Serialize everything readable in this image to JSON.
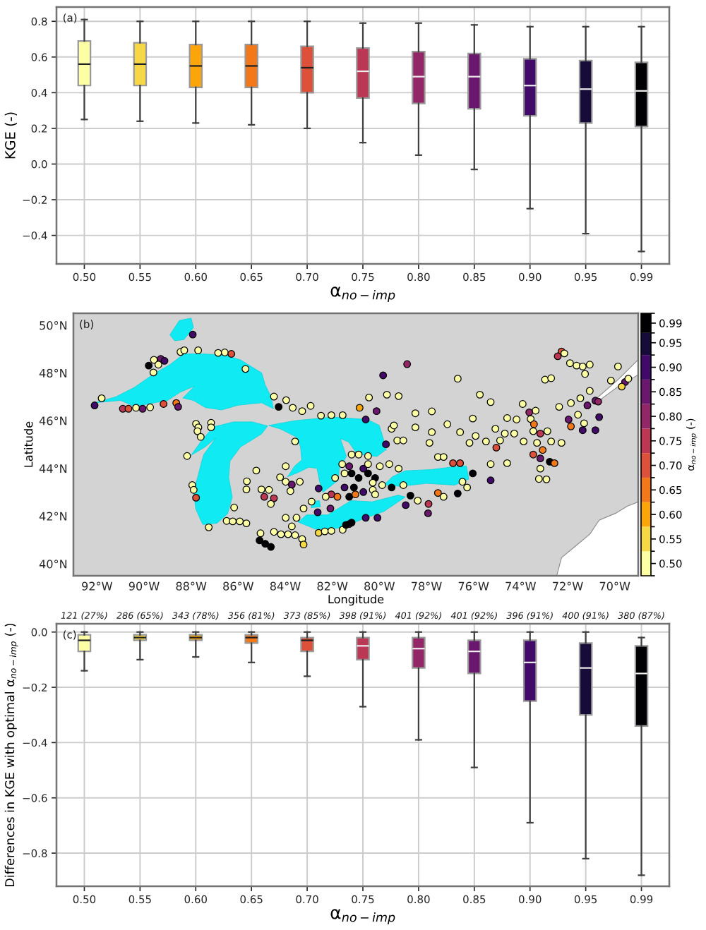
{
  "chart_data": [
    {
      "type": "box",
      "categories": [
        "0.50",
        "0.55",
        "0.60",
        "0.65",
        "0.70",
        "0.75",
        "0.80",
        "0.85",
        "0.90",
        "0.95",
        "0.99"
      ],
      "xlabel": "α$_{no−imp}$",
      "ylabel": "KGE (-)",
      "ylim": [
        -0.56,
        0.88
      ],
      "yticks": [
        {
          "value": -0.4,
          "label": "−0.4"
        },
        {
          "value": -0.2,
          "label": "−0.2"
        },
        {
          "value": 0,
          "label": "0.0"
        },
        {
          "value": 0.2,
          "label": "0.2"
        },
        {
          "value": 0.4,
          "label": "0.4"
        },
        {
          "value": 0.6,
          "label": "0.6"
        },
        {
          "value": 0.8,
          "label": "0.8"
        }
      ],
      "colors": [
        "#fcffa4",
        "#f6d746",
        "#fca50a",
        "#f37819",
        "#dd513a",
        "#bc3754",
        "#932667",
        "#6a176e",
        "#420a68",
        "#160b39",
        "#000004"
      ],
      "boxes": [
        {
          "low": 0.25,
          "q1": 0.44,
          "median": 0.56,
          "q3": 0.69,
          "high": 0.81
        },
        {
          "low": 0.24,
          "q1": 0.44,
          "median": 0.56,
          "q3": 0.68,
          "high": 0.8
        },
        {
          "low": 0.23,
          "q1": 0.43,
          "median": 0.55,
          "q3": 0.67,
          "high": 0.8
        },
        {
          "low": 0.22,
          "q1": 0.43,
          "median": 0.55,
          "q3": 0.67,
          "high": 0.8
        },
        {
          "low": 0.2,
          "q1": 0.4,
          "median": 0.54,
          "q3": 0.66,
          "high": 0.8
        },
        {
          "low": 0.12,
          "q1": 0.37,
          "median": 0.52,
          "q3": 0.65,
          "high": 0.79
        },
        {
          "low": 0.05,
          "q1": 0.34,
          "median": 0.49,
          "q3": 0.63,
          "high": 0.79
        },
        {
          "low": -0.03,
          "q1": 0.31,
          "median": 0.49,
          "q3": 0.62,
          "high": 0.78
        },
        {
          "low": -0.25,
          "q1": 0.27,
          "median": 0.44,
          "q3": 0.59,
          "high": 0.77
        },
        {
          "low": -0.39,
          "q1": 0.23,
          "median": 0.42,
          "q3": 0.58,
          "high": 0.77
        },
        {
          "low": -0.49,
          "q1": 0.21,
          "median": 0.41,
          "q3": 0.57,
          "high": 0.77
        }
      ],
      "grid": true,
      "annotations": [
        "(a)"
      ]
    },
    {
      "type": "scatter",
      "x": [
        -87.93,
        -88.45,
        -88.29,
        -87.7,
        -89.8,
        -89.58,
        -89.29,
        -89.13,
        -89.39,
        -89.6,
        -86.85,
        -86.57,
        -86.29,
        -85.69,
        -91.8,
        -92.1,
        -90.9,
        -90.66,
        -90.34,
        -90.06,
        -89.74,
        -89.17,
        -88.63,
        -88.55,
        -84.48,
        -84.28,
        -83.96,
        -83.68,
        -83.28,
        -82.92,
        -82.48,
        -82.04,
        -81.56,
        -87.79,
        -87.69,
        -87.73,
        -87.59,
        -87.15,
        -87.15,
        -88.17,
        -83.58,
        -85.23,
        -85.63,
        -85.65,
        -87.95,
        -87.89,
        -87.79,
        -87.25,
        -86.49,
        -86.23,
        -85.93,
        -85.65,
        -86.17,
        -84.89,
        -84.48,
        -84.61,
        -85.01,
        -84.69,
        -84.22,
        -83.98,
        -83.72,
        -83.38,
        -83.78,
        -83.98,
        -83.22,
        -82.88,
        -82.58,
        -82.62,
        -84.48,
        -84.18,
        -83.88,
        -83.58,
        -83.28,
        -83.72,
        -83.98,
        -83.52,
        -83.22,
        -85.09,
        -84.85,
        -84.61,
        -85.05,
        -82.58,
        -82.32,
        -82.04,
        -81.56,
        -81.28,
        -81.18,
        -81.42,
        -80.58,
        -81.18,
        -80.48,
        -81.28,
        -81.18,
        -81.48,
        -80.88,
        -80.48,
        -80.18,
        -81.08,
        -81.28,
        -81.02,
        -82.04,
        -81.78,
        -82.08,
        -82.28,
        -81.88,
        -79.98,
        -79.88,
        -80.68,
        -81.48,
        -80.28,
        -81.58,
        -78.82,
        -79.84,
        -76.67,
        -72.96,
        -72.7,
        -72.26,
        -72.42,
        -72.14,
        -71.9,
        -71.62,
        -71.36,
        -71.06,
        -71.26,
        -70.16,
        -69.86,
        -69.56,
        -69.42,
        -69.7,
        -75.73,
        -75.27,
        -79.68,
        -79.18,
        -80.44,
        -80.12,
        -80.58,
        -80.84,
        -78.47,
        -77.77,
        -76.03,
        -74.57,
        -74.17,
        -73.57,
        -73.36,
        -73.91,
        -73.63,
        -73.43,
        -72.36,
        -71.86,
        -71.46,
        -71.06,
        -70.82,
        -70.7,
        -71.16,
        -70.66,
        -71.96,
        -71.86,
        -71.36,
        -70.82,
        -71.3,
        -71.56,
        -72.86,
        -73.16,
        -73.46,
        -79.72,
        -79.48,
        -79.24,
        -78.98,
        -79.38,
        -78.47,
        -77.77,
        -77.87,
        -77.11,
        -76.57,
        -75.91,
        -75.47,
        -74.87,
        -74.67,
        -75.07,
        -74.27,
        -73.87,
        -73.3,
        -72.7,
        -72.26,
        -76.17,
        -73.46,
        -73.16,
        -73.06,
        -72.76,
        -72.56,
        -75.03,
        -77.51,
        -77.27,
        -76.87,
        -76.57,
        -75.27,
        -74.57,
        -73.22,
        -72.9,
        -73.16,
        -76.03,
        -75.27,
        -76.47,
        -76.27,
        -76.67,
        -77.51,
        -77.27,
        -77.91,
        -77.93,
        -78.88,
        -78.68,
        -78.37,
        -78.98,
        -79.18,
        -79.58,
        -79.48,
        -80.08,
        -80.68,
        -80.28,
        -80.48,
        -80.88,
        -80.18
      ],
      "values": [
        49.61,
        48.88,
        48.95,
        48.95,
        48.31,
        48.55,
        48.59,
        48.51,
        48.35,
        48.02,
        48.84,
        48.86,
        48.8,
        48.17,
        46.94,
        46.64,
        46.5,
        46.5,
        46.54,
        46.5,
        46.56,
        46.7,
        46.74,
        46.58,
        47.01,
        46.58,
        46.86,
        46.54,
        46.4,
        46.62,
        46.21,
        46.23,
        46.23,
        45.87,
        45.72,
        45.56,
        45.32,
        45.91,
        45.72,
        44.52,
        45.13,
        43.91,
        43.46,
        43.12,
        43.3,
        43.1,
        42.77,
        41.53,
        41.8,
        41.78,
        41.78,
        41.7,
        42.36,
        42.81,
        42.75,
        42.51,
        43.12,
        43.1,
        43.63,
        43.44,
        43.32,
        43.44,
        43.05,
        44.09,
        42.32,
        42.61,
        43.16,
        42.16,
        41.34,
        41.24,
        41.24,
        41.2,
        41.04,
        41.57,
        41.93,
        41.93,
        40.81,
        40.98,
        40.84,
        40.71,
        41.28,
        41.3,
        41.36,
        41.38,
        41.43,
        41.67,
        41.73,
        41.63,
        41.93,
        44.58,
        44.52,
        44.09,
        43.79,
        43.79,
        43.6,
        43.79,
        43.6,
        43.2,
        42.81,
        42.91,
        42.91,
        42.81,
        42.32,
        42.81,
        43.6,
        44.09,
        43.3,
        43.01,
        43.2,
        43.1,
        44.18,
        48.37,
        47.9,
        47.76,
        47.72,
        47.78,
        48.9,
        48.7,
        48.82,
        48.41,
        48.31,
        48.27,
        48.35,
        47.96,
        47.68,
        48.27,
        47.62,
        47.76,
        47.43,
        47.09,
        46.78,
        47.09,
        47.03,
        46.97,
        46.4,
        46.05,
        46.54,
        46.31,
        46.39,
        46.09,
        46.11,
        46.05,
        46.07,
        46.42,
        46.7,
        46.35,
        45.85,
        46.58,
        46.74,
        46.94,
        47.25,
        46.84,
        46.8,
        46.64,
        46.15,
        46.05,
        45.76,
        45.6,
        45.6,
        45.89,
        46.25,
        45.56,
        45.46,
        45.56,
        45.01,
        45.66,
        45.17,
        45.17,
        45.8,
        45.72,
        45.52,
        45.07,
        45.85,
        45.52,
        45.36,
        45.13,
        45.17,
        45.46,
        45.66,
        45.46,
        45.13,
        45.07,
        45.13,
        45.07,
        45.07,
        44.58,
        44.42,
        44.77,
        44.28,
        44.22,
        44.87,
        44.48,
        44.48,
        44.22,
        44.22,
        44.18,
        44.22,
        43.56,
        43.54,
        43.99,
        43.79,
        43.5,
        43.44,
        43.2,
        42.95,
        42.97,
        42.81,
        42.51,
        42.12,
        42.46,
        42.86,
        42.65,
        43.3,
        43.99,
        44.18,
        43.2,
        41.93,
        43.99,
        43.4,
        44.18,
        44.58,
        42.91
      ],
      "cvalues": [
        0.9,
        0.5,
        0.5,
        0.5,
        0.99,
        0.5,
        0.85,
        0.9,
        0.5,
        0.5,
        0.5,
        0.5,
        0.7,
        0.5,
        0.5,
        0.9,
        0.75,
        0.7,
        0.5,
        0.85,
        0.5,
        0.7,
        0.65,
        0.85,
        0.5,
        0.99,
        0.5,
        0.5,
        0.5,
        0.5,
        0.5,
        0.5,
        0.5,
        0.5,
        0.5,
        0.5,
        0.5,
        0.5,
        0.5,
        0.5,
        0.5,
        0.5,
        0.5,
        0.5,
        0.5,
        0.5,
        0.7,
        0.5,
        0.5,
        0.5,
        0.5,
        0.5,
        0.5,
        0.75,
        0.75,
        0.5,
        0.5,
        0.5,
        0.5,
        0.5,
        0.85,
        0.5,
        0.5,
        0.5,
        0.5,
        0.5,
        0.9,
        0.9,
        0.5,
        0.5,
        0.5,
        0.5,
        0.5,
        0.5,
        0.5,
        0.5,
        0.55,
        0.99,
        0.99,
        0.99,
        0.5,
        0.55,
        0.5,
        0.5,
        0.5,
        0.85,
        0.99,
        0.99,
        0.9,
        0.5,
        0.5,
        0.85,
        0.99,
        0.5,
        0.99,
        0.99,
        0.99,
        0.99,
        0.99,
        0.65,
        0.75,
        0.65,
        0.85,
        0.5,
        0.5,
        0.5,
        0.5,
        0.9,
        0.9,
        0.5,
        0.5,
        0.8,
        0.9,
        0.5,
        0.5,
        0.5,
        0.7,
        0.75,
        0.5,
        0.5,
        0.5,
        0.5,
        0.5,
        0.5,
        0.5,
        0.5,
        0.85,
        0.5,
        0.55,
        0.5,
        0.5,
        0.5,
        0.5,
        0.5,
        0.85,
        0.9,
        0.6,
        0.5,
        0.5,
        0.5,
        0.5,
        0.5,
        0.5,
        0.5,
        0.5,
        0.8,
        0.65,
        0.5,
        0.5,
        0.5,
        0.5,
        0.85,
        0.8,
        0.85,
        0.9,
        0.85,
        0.65,
        0.9,
        0.9,
        0.5,
        0.5,
        0.5,
        0.75,
        0.5,
        0.9,
        0.5,
        0.5,
        0.5,
        0.5,
        0.5,
        0.5,
        0.5,
        0.5,
        0.5,
        0.5,
        0.5,
        0.5,
        0.5,
        0.5,
        0.5,
        0.5,
        0.5,
        0.5,
        0.5,
        0.5,
        0.7,
        0.85,
        0.65,
        0.99,
        0.65,
        0.7,
        0.5,
        0.5,
        0.7,
        0.7,
        0.5,
        0.5,
        0.5,
        0.5,
        0.5,
        0.99,
        0.9,
        0.5,
        0.5,
        0.99,
        0.65,
        0.5,
        0.75,
        0.85,
        0.9,
        0.99,
        0.5,
        0.5,
        0.5,
        0.5,
        0.99,
        0.9,
        0.9,
        0.5,
        0.5,
        0.5,
        0.5
      ],
      "xlim": [
        -93,
        -69
      ],
      "ylim": [
        39.5,
        50.5
      ],
      "xticks": [
        {
          "value": -92,
          "label": "92°W"
        },
        {
          "value": -90,
          "label": "90°W"
        },
        {
          "value": -88,
          "label": "88°W"
        },
        {
          "value": -86,
          "label": "86°W"
        },
        {
          "value": -84,
          "label": "84°W"
        },
        {
          "value": -82,
          "label": "82°W"
        },
        {
          "value": -80,
          "label": "80°W"
        },
        {
          "value": -78,
          "label": "78°W"
        },
        {
          "value": -76,
          "label": "76°W"
        },
        {
          "value": -74,
          "label": "74°W"
        },
        {
          "value": -72,
          "label": "72°W"
        },
        {
          "value": -70,
          "label": "70°W"
        }
      ],
      "yticks": [
        {
          "value": 40,
          "label": "40°N"
        },
        {
          "value": 42,
          "label": "42°N"
        },
        {
          "value": 44,
          "label": "44°N"
        },
        {
          "value": 46,
          "label": "46°N"
        },
        {
          "value": 48,
          "label": "48°N"
        },
        {
          "value": 50,
          "label": "50°N"
        }
      ],
      "xlabel": "Longitude",
      "ylabel": "Latitude",
      "clabel": "α$_{no−imp}$ (-)",
      "clim": [
        0.475,
        1.01
      ],
      "cticks": [
        {
          "value": 0.5,
          "label": "0.50"
        },
        {
          "value": 0.55,
          "label": "0.55"
        },
        {
          "value": 0.6,
          "label": "0.60"
        },
        {
          "value": 0.65,
          "label": "0.65"
        },
        {
          "value": 0.7,
          "label": "0.70"
        },
        {
          "value": 0.75,
          "label": "0.75"
        },
        {
          "value": 0.8,
          "label": "0.80"
        },
        {
          "value": 0.85,
          "label": "0.85"
        },
        {
          "value": 0.9,
          "label": "0.90"
        },
        {
          "value": 0.95,
          "label": "0.95"
        },
        {
          "value": 0.99,
          "label": "0.99"
        }
      ],
      "marker": "circle",
      "annotations": [
        "(b)"
      ]
    },
    {
      "type": "box",
      "categories": [
        "0.50",
        "0.55",
        "0.60",
        "0.65",
        "0.70",
        "0.75",
        "0.80",
        "0.85",
        "0.90",
        "0.95",
        "0.99"
      ],
      "xlabel": "α$_{no−imp}$",
      "ylabel": "Differences in KGE with optimal α$_{no−imp}$ (-)",
      "ylim": [
        -0.92,
        0.03
      ],
      "yticks": [
        {
          "value": -0.8,
          "label": "−0.8"
        },
        {
          "value": -0.6,
          "label": "−0.6"
        },
        {
          "value": -0.4,
          "label": "−0.4"
        },
        {
          "value": -0.2,
          "label": "−0.2"
        },
        {
          "value": 0,
          "label": "0.0"
        }
      ],
      "colors": [
        "#fcffa4",
        "#f6d746",
        "#fca50a",
        "#f37819",
        "#dd513a",
        "#bc3754",
        "#932667",
        "#6a176e",
        "#420a68",
        "#160b39",
        "#000004"
      ],
      "boxes": [
        {
          "low": -0.14,
          "q1": -0.07,
          "median": -0.03,
          "q3": -0.01,
          "high": 0.0
        },
        {
          "low": -0.1,
          "q1": -0.03,
          "median": -0.02,
          "q3": -0.01,
          "high": 0.0
        },
        {
          "low": -0.09,
          "q1": -0.03,
          "median": -0.02,
          "q3": -0.01,
          "high": 0.0
        },
        {
          "low": -0.11,
          "q1": -0.04,
          "median": -0.02,
          "q3": -0.01,
          "high": 0.0
        },
        {
          "low": -0.16,
          "q1": -0.07,
          "median": -0.03,
          "q3": -0.02,
          "high": 0.0
        },
        {
          "low": -0.27,
          "q1": -0.1,
          "median": -0.05,
          "q3": -0.02,
          "high": 0.0
        },
        {
          "low": -0.39,
          "q1": -0.13,
          "median": -0.06,
          "q3": -0.02,
          "high": 0.0
        },
        {
          "low": -0.49,
          "q1": -0.15,
          "median": -0.07,
          "q3": -0.03,
          "high": 0.0
        },
        {
          "low": -0.69,
          "q1": -0.25,
          "median": -0.11,
          "q3": -0.03,
          "high": 0.0
        },
        {
          "low": -0.82,
          "q1": -0.3,
          "median": -0.13,
          "q3": -0.04,
          "high": 0.0
        },
        {
          "low": -0.88,
          "q1": -0.34,
          "median": -0.15,
          "q3": -0.05,
          "high": -0.02
        }
      ],
      "grid": true,
      "annotations": [
        "(c)",
        "121 (27%)",
        "286 (65%)",
        "343 (78%)",
        "356 (81%)",
        "373 (85%)",
        "398 (91%)",
        "401 (92%)",
        "401 (92%)",
        "396 (91%)",
        "400 (91%)",
        "380 (87%)"
      ]
    }
  ]
}
